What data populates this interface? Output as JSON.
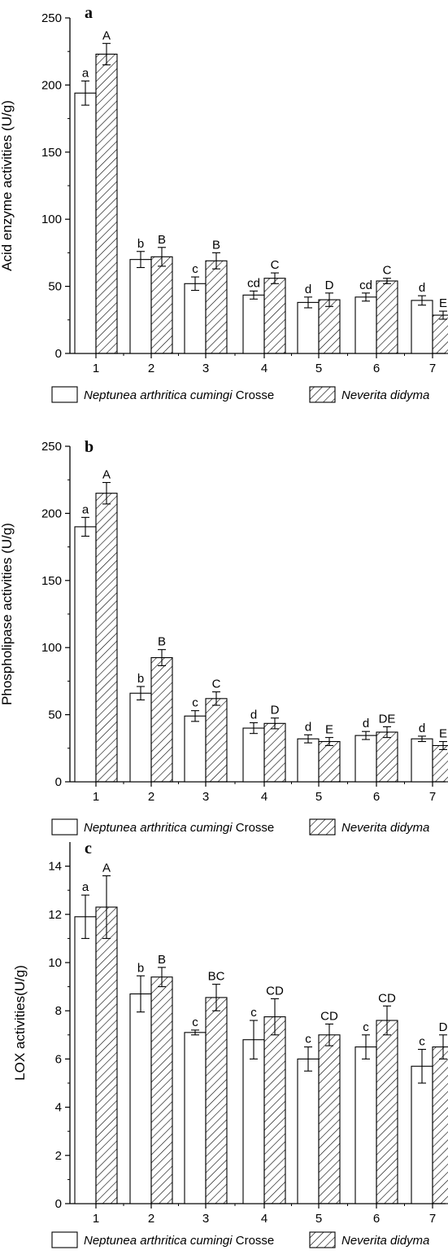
{
  "chart_data": [
    {
      "type": "bar",
      "panel_label": "a",
      "ylabel": "Acid enzyme activities (U/g)",
      "xlabel": "",
      "categories": [
        "1",
        "2",
        "3",
        "4",
        "5",
        "6",
        "7"
      ],
      "ylim": [
        0,
        250
      ],
      "yticks": [
        0,
        50,
        100,
        150,
        200,
        250
      ],
      "grid": false,
      "legend_placement": "bottom",
      "series": [
        {
          "name_italic": "Neptunea arthritica cumingi",
          "name_plain": " Crosse",
          "pattern": "plain",
          "values": [
            194,
            70,
            52,
            43.5,
            38,
            42,
            39.5
          ],
          "errors": [
            9,
            6,
            5,
            3,
            4,
            3,
            3.5
          ],
          "labels": [
            "a",
            "b",
            "c",
            "cd",
            "d",
            "cd",
            "d"
          ]
        },
        {
          "name_italic": "Neverita didyma",
          "name_plain": "",
          "pattern": "hatched",
          "values": [
            223,
            72,
            69,
            56,
            40,
            54,
            28.5
          ],
          "errors": [
            8,
            7,
            6,
            4,
            5,
            2,
            3
          ],
          "labels": [
            "A",
            "B",
            "B",
            "C",
            "D",
            "C",
            "E"
          ]
        }
      ]
    },
    {
      "type": "bar",
      "panel_label": "b",
      "ylabel": "Phospholipase activities (U/g)",
      "xlabel": "",
      "categories": [
        "1",
        "2",
        "3",
        "4",
        "5",
        "6",
        "7"
      ],
      "ylim": [
        0,
        250
      ],
      "yticks": [
        0,
        50,
        100,
        150,
        200,
        250
      ],
      "grid": false,
      "legend_placement": "bottom",
      "series": [
        {
          "name_italic": "Neptunea arthritica cumingi",
          "name_plain": " Crosse",
          "pattern": "plain",
          "values": [
            190,
            66,
            49,
            40,
            32,
            34.5,
            32
          ],
          "errors": [
            7,
            5,
            4,
            4,
            3,
            3,
            2
          ],
          "labels": [
            "a",
            "b",
            "c",
            "d",
            "d",
            "d",
            "d"
          ]
        },
        {
          "name_italic": "Neverita didyma",
          "name_plain": "",
          "pattern": "hatched",
          "values": [
            215,
            92.5,
            62,
            43.5,
            30,
            37,
            27
          ],
          "errors": [
            8,
            6,
            5,
            4,
            3,
            4,
            3
          ],
          "labels": [
            "A",
            "B",
            "C",
            "D",
            "E",
            "DE",
            "E"
          ]
        }
      ]
    },
    {
      "type": "bar",
      "panel_label": "c",
      "ylabel": "LOX activities(U/g)",
      "xlabel": "",
      "categories": [
        "1",
        "2",
        "3",
        "4",
        "5",
        "6",
        "7"
      ],
      "ylim": [
        0,
        15
      ],
      "yticks": [
        0,
        2,
        4,
        6,
        8,
        10,
        12,
        14
      ],
      "grid": false,
      "legend_placement": "bottom",
      "series": [
        {
          "name_italic": "Neptunea arthritica cumingi",
          "name_plain": " Crosse",
          "pattern": "plain",
          "values": [
            11.9,
            8.7,
            7.1,
            6.8,
            6.0,
            6.5,
            5.7
          ],
          "errors": [
            0.9,
            0.75,
            0.1,
            0.8,
            0.5,
            0.5,
            0.7
          ],
          "labels": [
            "a",
            "b",
            "c",
            "c",
            "c",
            "c",
            "c"
          ]
        },
        {
          "name_italic": "Neverita didyma",
          "name_plain": "",
          "pattern": "hatched",
          "values": [
            12.3,
            9.4,
            8.55,
            7.75,
            7.0,
            7.6,
            6.5
          ],
          "errors": [
            1.3,
            0.4,
            0.55,
            0.75,
            0.45,
            0.6,
            0.5
          ],
          "labels": [
            "A",
            "B",
            "BC",
            "CD",
            "CD",
            "CD",
            "D"
          ]
        }
      ]
    }
  ]
}
